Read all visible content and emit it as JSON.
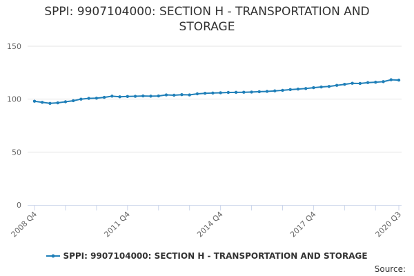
{
  "chart_data": {
    "type": "line",
    "title_lines": [
      "SPPI: 9907104000: SECTION H - TRANSPORTATION AND",
      "STORAGE"
    ],
    "x_tick_labels": [
      "2008 Q4",
      "2011 Q4",
      "2014 Q4",
      "2017 Q4",
      "2020 Q3"
    ],
    "y_ticks": [
      0,
      50,
      100,
      150
    ],
    "ylim": [
      0,
      150
    ],
    "grid": true,
    "legend_position": "bottom",
    "source_label": "Source:",
    "colors": {
      "series": "#1f7fb8",
      "grid": "#e6e6e6",
      "axis": "#ccd6eb",
      "text": "#333333",
      "tick_text": "#666666"
    },
    "series": [
      {
        "name": "SPPI: 9907104000: SECTION H - TRANSPORTATION AND STORAGE",
        "x": [
          "2008 Q4",
          "2009 Q1",
          "2009 Q2",
          "2009 Q3",
          "2009 Q4",
          "2010 Q1",
          "2010 Q2",
          "2010 Q3",
          "2010 Q4",
          "2011 Q1",
          "2011 Q2",
          "2011 Q3",
          "2011 Q4",
          "2012 Q1",
          "2012 Q2",
          "2012 Q3",
          "2012 Q4",
          "2013 Q1",
          "2013 Q2",
          "2013 Q3",
          "2013 Q4",
          "2014 Q1",
          "2014 Q2",
          "2014 Q3",
          "2014 Q4",
          "2015 Q1",
          "2015 Q2",
          "2015 Q3",
          "2015 Q4",
          "2016 Q1",
          "2016 Q2",
          "2016 Q3",
          "2016 Q4",
          "2017 Q1",
          "2017 Q2",
          "2017 Q3",
          "2017 Q4",
          "2018 Q1",
          "2018 Q2",
          "2018 Q3",
          "2018 Q4",
          "2019 Q1",
          "2019 Q2",
          "2019 Q3",
          "2019 Q4",
          "2020 Q1",
          "2020 Q2",
          "2020 Q3"
        ],
        "values": [
          98.0,
          97.0,
          96.0,
          96.5,
          97.5,
          98.5,
          100.0,
          100.7,
          100.9,
          101.7,
          102.8,
          102.2,
          102.5,
          102.7,
          103.0,
          102.8,
          103.0,
          104.0,
          103.7,
          104.2,
          104.0,
          105.0,
          105.5,
          105.8,
          106.0,
          106.3,
          106.4,
          106.5,
          106.7,
          107.0,
          107.3,
          107.8,
          108.3,
          109.0,
          109.5,
          110.0,
          110.8,
          111.5,
          112.0,
          113.0,
          114.0,
          115.0,
          114.8,
          115.6,
          116.0,
          116.5,
          118.3,
          118.0
        ]
      }
    ]
  }
}
